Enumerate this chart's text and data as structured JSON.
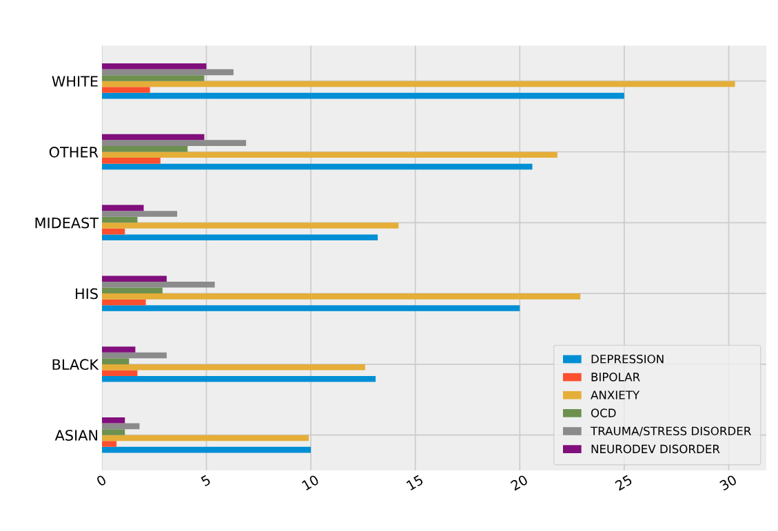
{
  "chart_data": {
    "type": "bar",
    "orientation": "horizontal",
    "categories": [
      "WHITE",
      "OTHER",
      "MIDEAST",
      "HIS",
      "BLACK",
      "ASIAN"
    ],
    "series": [
      {
        "name": "DEPRESSION",
        "color": "#008fd5",
        "values": [
          25.0,
          20.6,
          13.2,
          20.0,
          13.1,
          10.0
        ]
      },
      {
        "name": "BIPOLAR",
        "color": "#fc4f30",
        "values": [
          2.3,
          2.8,
          1.1,
          2.1,
          1.7,
          0.7
        ]
      },
      {
        "name": "ANXIETY",
        "color": "#e5ae38",
        "values": [
          30.3,
          21.8,
          14.2,
          22.9,
          12.6,
          9.9
        ]
      },
      {
        "name": "OCD",
        "color": "#6d904f",
        "values": [
          4.9,
          4.1,
          1.7,
          2.9,
          1.3,
          1.1
        ]
      },
      {
        "name": "TRAUMA/STRESS DISORDER",
        "color": "#8b8b8b",
        "values": [
          6.3,
          6.9,
          3.6,
          5.4,
          3.1,
          1.8
        ]
      },
      {
        "name": "NEURODEV DISORDER",
        "color": "#810f7c",
        "values": [
          5.0,
          4.9,
          2.0,
          3.1,
          1.6,
          1.1
        ]
      }
    ],
    "xlim": [
      0,
      31.8
    ],
    "xticks": [
      0,
      5,
      10,
      15,
      20,
      25,
      30
    ],
    "grid": true,
    "legend": "bottom right"
  }
}
